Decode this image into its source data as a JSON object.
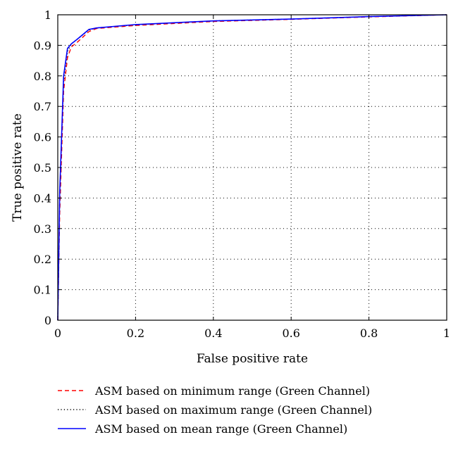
{
  "chart_data": {
    "type": "line",
    "title": "",
    "xlabel": "False positive rate",
    "ylabel": "True positive rate",
    "xlim": [
      0,
      1
    ],
    "ylim": [
      0,
      1
    ],
    "xticks": [
      0,
      0.2,
      0.4,
      0.6,
      0.8,
      1
    ],
    "yticks": [
      0,
      0.1,
      0.2,
      0.3,
      0.4,
      0.5,
      0.6,
      0.7,
      0.8,
      0.9,
      1
    ],
    "xtick_labels": [
      "0",
      "0.2",
      "0.4",
      "0.6",
      "0.8",
      "1"
    ],
    "ytick_labels": [
      "0",
      "0.1",
      "0.2",
      "0.3",
      "0.4",
      "0.5",
      "0.6",
      "0.7",
      "0.8",
      "0.9",
      "1"
    ],
    "grid": true,
    "legend_position": "bottom",
    "series": [
      {
        "name": "ASM based on minimum range (Green Channel)",
        "color": "#ff0000",
        "line_style": "dashed",
        "x": [
          0,
          0.005,
          0.015,
          0.025,
          0.035,
          0.05,
          0.08,
          0.1,
          0.2,
          0.4,
          0.6,
          0.8,
          1
        ],
        "y": [
          0,
          0.35,
          0.75,
          0.86,
          0.895,
          0.91,
          0.945,
          0.955,
          0.965,
          0.978,
          0.985,
          0.993,
          1
        ]
      },
      {
        "name": "ASM based on maximum range (Green Channel)",
        "color": "#000000",
        "line_style": "dotted",
        "x": [
          0,
          0.005,
          0.015,
          0.025,
          0.035,
          0.05,
          0.08,
          0.1,
          0.2,
          0.4,
          0.6,
          0.8,
          1
        ],
        "y": [
          0,
          0.4,
          0.78,
          0.88,
          0.905,
          0.92,
          0.95,
          0.957,
          0.967,
          0.98,
          0.986,
          0.994,
          1
        ]
      },
      {
        "name": "ASM based on mean range (Green Channel)",
        "color": "#0000ff",
        "line_style": "solid",
        "x": [
          0,
          0.005,
          0.015,
          0.025,
          0.035,
          0.05,
          0.08,
          0.1,
          0.2,
          0.4,
          0.6,
          0.8,
          1
        ],
        "y": [
          0,
          0.42,
          0.8,
          0.89,
          0.905,
          0.92,
          0.952,
          0.957,
          0.968,
          0.98,
          0.986,
          0.994,
          1
        ]
      }
    ]
  }
}
